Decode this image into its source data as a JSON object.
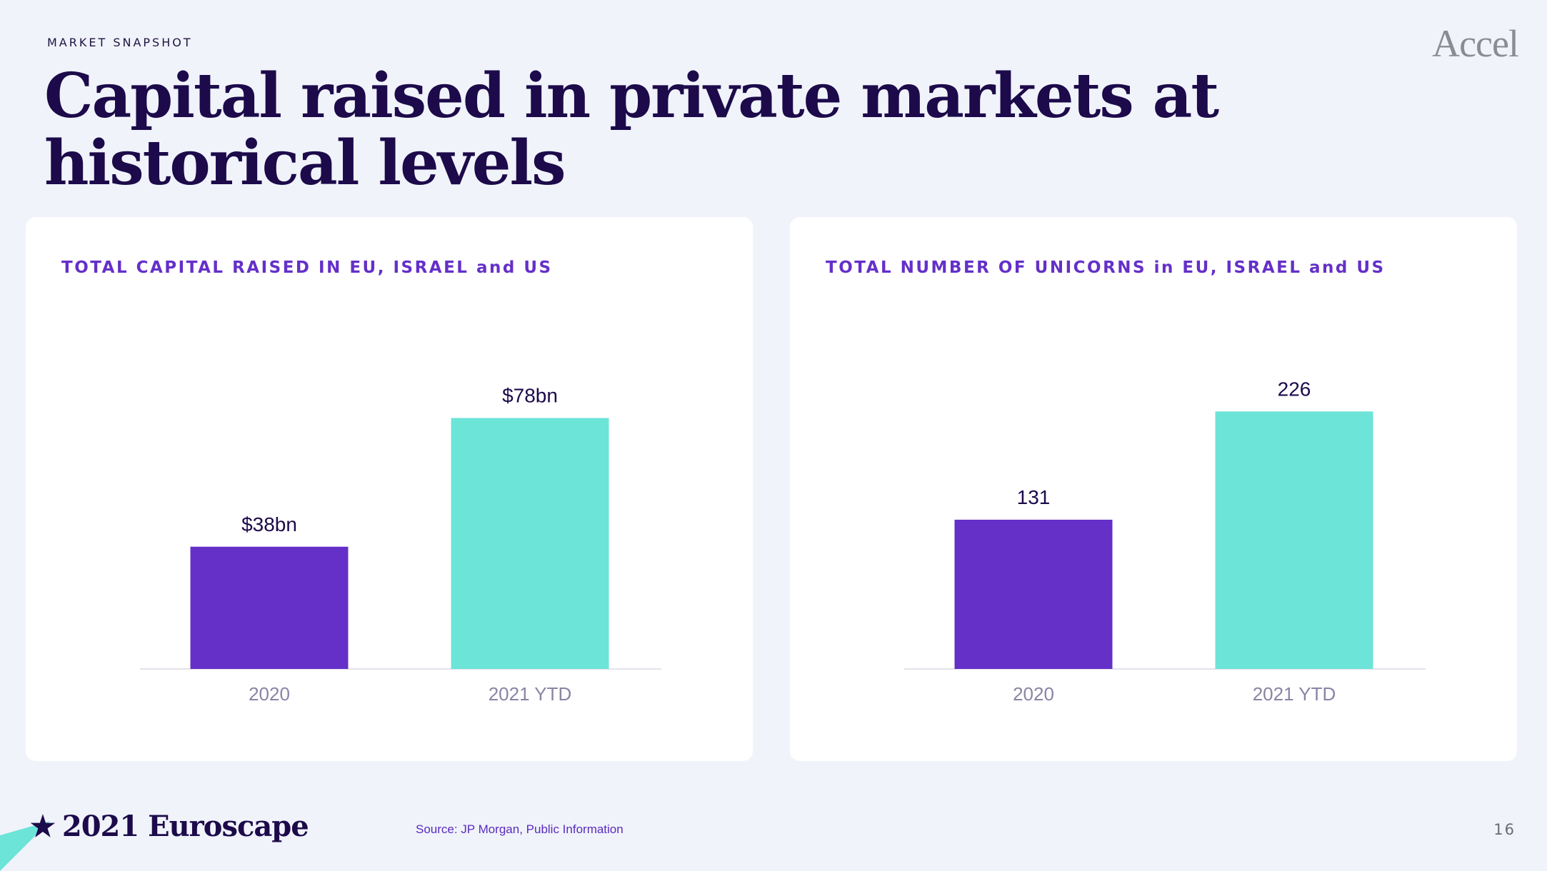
{
  "header": {
    "eyebrow": "MARKET SNAPSHOT",
    "logo": "Accel",
    "title": "Capital raised in private markets at historical levels"
  },
  "footer": {
    "brand": "2021 Euroscape",
    "brand_icon": "star-icon",
    "source": "Source: JP Morgan, Public Information",
    "page_number": "16"
  },
  "colors": {
    "purple": "#6430c8",
    "teal": "#6ce4d8",
    "navy": "#1c0a4a"
  },
  "chart_data": [
    {
      "type": "bar",
      "title": "TOTAL CAPITAL RAISED IN EU, ISRAEL and US",
      "categories": [
        "2020",
        "2021 YTD"
      ],
      "values": [
        38,
        78
      ],
      "data_labels": [
        "$38bn",
        "$78bn"
      ],
      "unit": "bn USD",
      "ylim": [
        0,
        85
      ],
      "bar_colors": [
        "#6430c8",
        "#6ce4d8"
      ],
      "grid": false,
      "legend": "none"
    },
    {
      "type": "bar",
      "title": "TOTAL NUMBER OF UNICORNS in EU, ISRAEL and US",
      "categories": [
        "2020",
        "2021 YTD"
      ],
      "values": [
        131,
        226
      ],
      "data_labels": [
        "131",
        "226"
      ],
      "ylim": [
        0,
        240
      ],
      "bar_colors": [
        "#6430c8",
        "#6ce4d8"
      ],
      "grid": false,
      "legend": "none"
    }
  ]
}
